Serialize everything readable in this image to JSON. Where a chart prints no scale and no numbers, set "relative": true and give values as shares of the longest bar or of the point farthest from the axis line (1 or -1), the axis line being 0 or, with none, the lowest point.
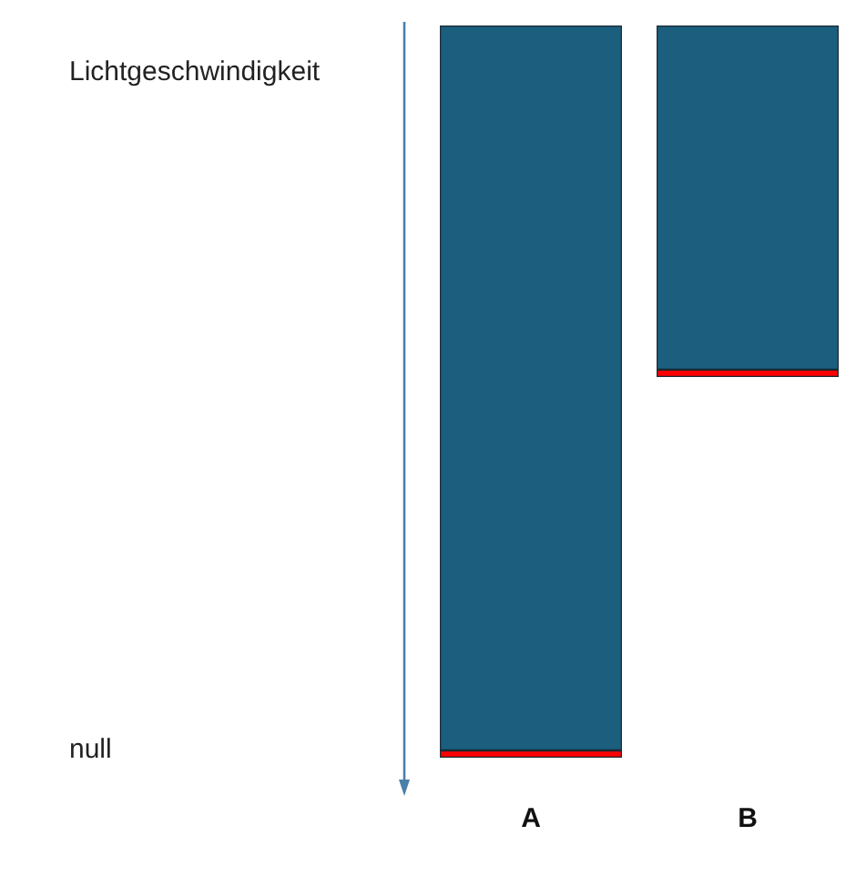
{
  "chart_data": {
    "type": "bar",
    "relative": true,
    "stacked": true,
    "categories": [
      "A",
      "B"
    ],
    "series": [
      {
        "color": "#1b5e7e",
        "values": [
          -0.99,
          -0.47
        ]
      },
      {
        "color": "#ff0000",
        "values": [
          -0.01,
          -0.01
        ]
      }
    ],
    "annotations": [
      "Lichtgeschwindigkeit",
      "null"
    ]
  }
}
